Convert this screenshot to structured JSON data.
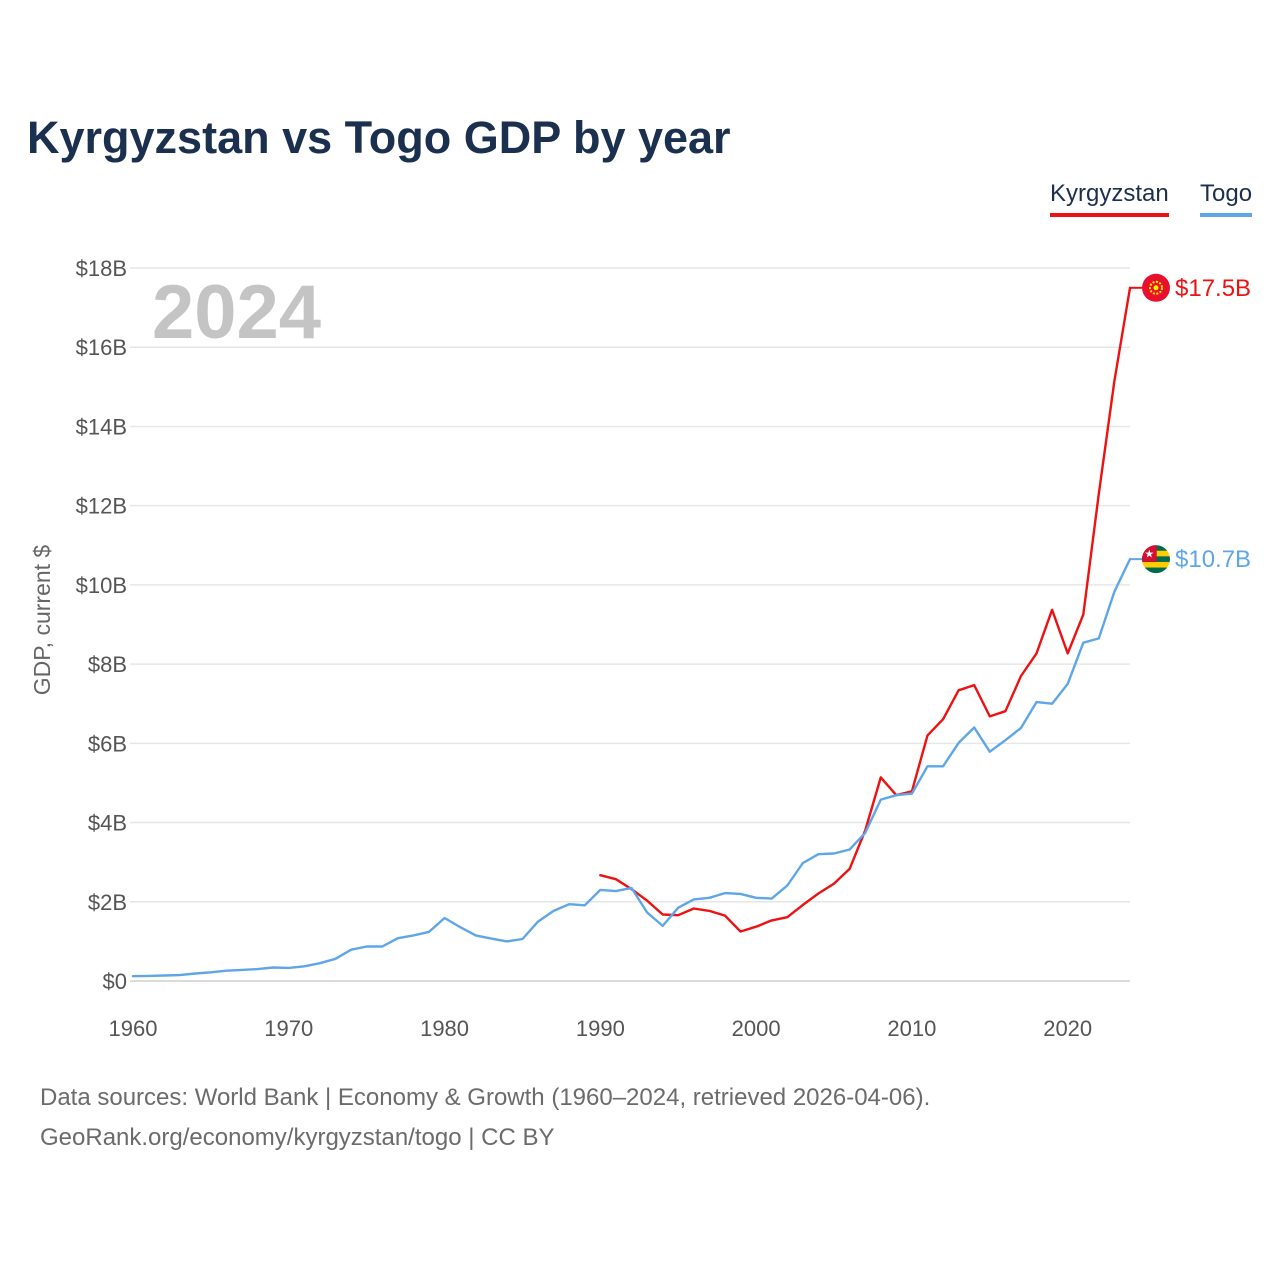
{
  "title": "Kyrgyzstan vs Togo GDP by year",
  "legend": {
    "kyrgyzstan": "Kyrgyzstan",
    "togo": "Togo"
  },
  "year_label": "2024",
  "sources": {
    "line1": "Data sources: World Bank | Economy & Growth (1960–2024, retrieved 2026-04-06).",
    "line2": "GeoRank.org/economy/kyrgyzstan/togo | CC BY"
  },
  "colors": {
    "kyrgyzstan": "#ee1111",
    "togo": "#5ea6e8",
    "title": "#1b2f4e",
    "grid": "#e6e6e6",
    "year_watermark": "#c4c4c4"
  },
  "chart_data": {
    "type": "line",
    "title": "Kyrgyzstan vs Togo GDP by year",
    "xlabel": "",
    "ylabel": "GDP, current $",
    "xlim": [
      1960,
      2024
    ],
    "ylim": [
      0,
      18
    ],
    "y_unit": "billions USD",
    "grid": true,
    "legend_position": "top-right",
    "x_ticks": [
      1960,
      1970,
      1980,
      1990,
      2000,
      2010,
      2020
    ],
    "x_tick_labels": [
      "1960",
      "1970",
      "1980",
      "1990",
      "2000",
      "2010",
      "2020"
    ],
    "y_ticks": [
      0,
      2,
      4,
      6,
      8,
      10,
      12,
      14,
      16,
      18
    ],
    "y_tick_labels": [
      "$0",
      "$2B",
      "$4B",
      "$6B",
      "$8B",
      "$10B",
      "$12B",
      "$14B",
      "$16B",
      "$18B"
    ],
    "series": [
      {
        "name": "Kyrgyzstan",
        "end_label": "$17.5B",
        "flag_icon": "kyrgyzstan-flag-icon",
        "x": [
          1990,
          1991,
          1992,
          1993,
          1994,
          1995,
          1996,
          1997,
          1998,
          1999,
          2000,
          2001,
          2002,
          2003,
          2004,
          2005,
          2006,
          2007,
          2008,
          2009,
          2010,
          2011,
          2012,
          2013,
          2014,
          2015,
          2016,
          2017,
          2018,
          2019,
          2020,
          2021,
          2022,
          2023,
          2024
        ],
        "values": [
          2.67,
          2.57,
          2.32,
          2.03,
          1.68,
          1.66,
          1.83,
          1.77,
          1.65,
          1.25,
          1.37,
          1.53,
          1.61,
          1.92,
          2.21,
          2.46,
          2.83,
          3.8,
          5.14,
          4.69,
          4.79,
          6.2,
          6.61,
          7.34,
          7.47,
          6.68,
          6.81,
          7.7,
          8.27,
          9.37,
          8.27,
          9.25,
          12.3,
          15.15,
          17.5
        ]
      },
      {
        "name": "Togo",
        "end_label": "$10.7B",
        "flag_icon": "togo-flag-icon",
        "x": [
          1960,
          1961,
          1962,
          1963,
          1964,
          1965,
          1966,
          1967,
          1968,
          1969,
          1970,
          1971,
          1972,
          1973,
          1974,
          1975,
          1976,
          1977,
          1978,
          1979,
          1980,
          1981,
          1982,
          1983,
          1984,
          1985,
          1986,
          1987,
          1988,
          1989,
          1990,
          1991,
          1992,
          1993,
          1994,
          1995,
          1996,
          1997,
          1998,
          1999,
          2000,
          2001,
          2002,
          2003,
          2004,
          2005,
          2006,
          2007,
          2008,
          2009,
          2010,
          2011,
          2012,
          2013,
          2014,
          2015,
          2016,
          2017,
          2018,
          2019,
          2020,
          2021,
          2022,
          2023,
          2024
        ],
        "values": [
          0.12,
          0.13,
          0.14,
          0.15,
          0.19,
          0.22,
          0.26,
          0.28,
          0.3,
          0.34,
          0.33,
          0.37,
          0.45,
          0.56,
          0.79,
          0.87,
          0.87,
          1.08,
          1.15,
          1.24,
          1.59,
          1.36,
          1.15,
          1.07,
          1.0,
          1.06,
          1.5,
          1.77,
          1.94,
          1.91,
          2.3,
          2.27,
          2.35,
          1.73,
          1.39,
          1.85,
          2.06,
          2.1,
          2.22,
          2.2,
          2.1,
          2.08,
          2.41,
          2.98,
          3.2,
          3.22,
          3.32,
          3.74,
          4.58,
          4.69,
          4.73,
          5.42,
          5.42,
          6.01,
          6.4,
          5.79,
          6.08,
          6.39,
          7.04,
          7.0,
          7.5,
          8.54,
          8.65,
          9.83,
          10.65
        ]
      }
    ]
  }
}
